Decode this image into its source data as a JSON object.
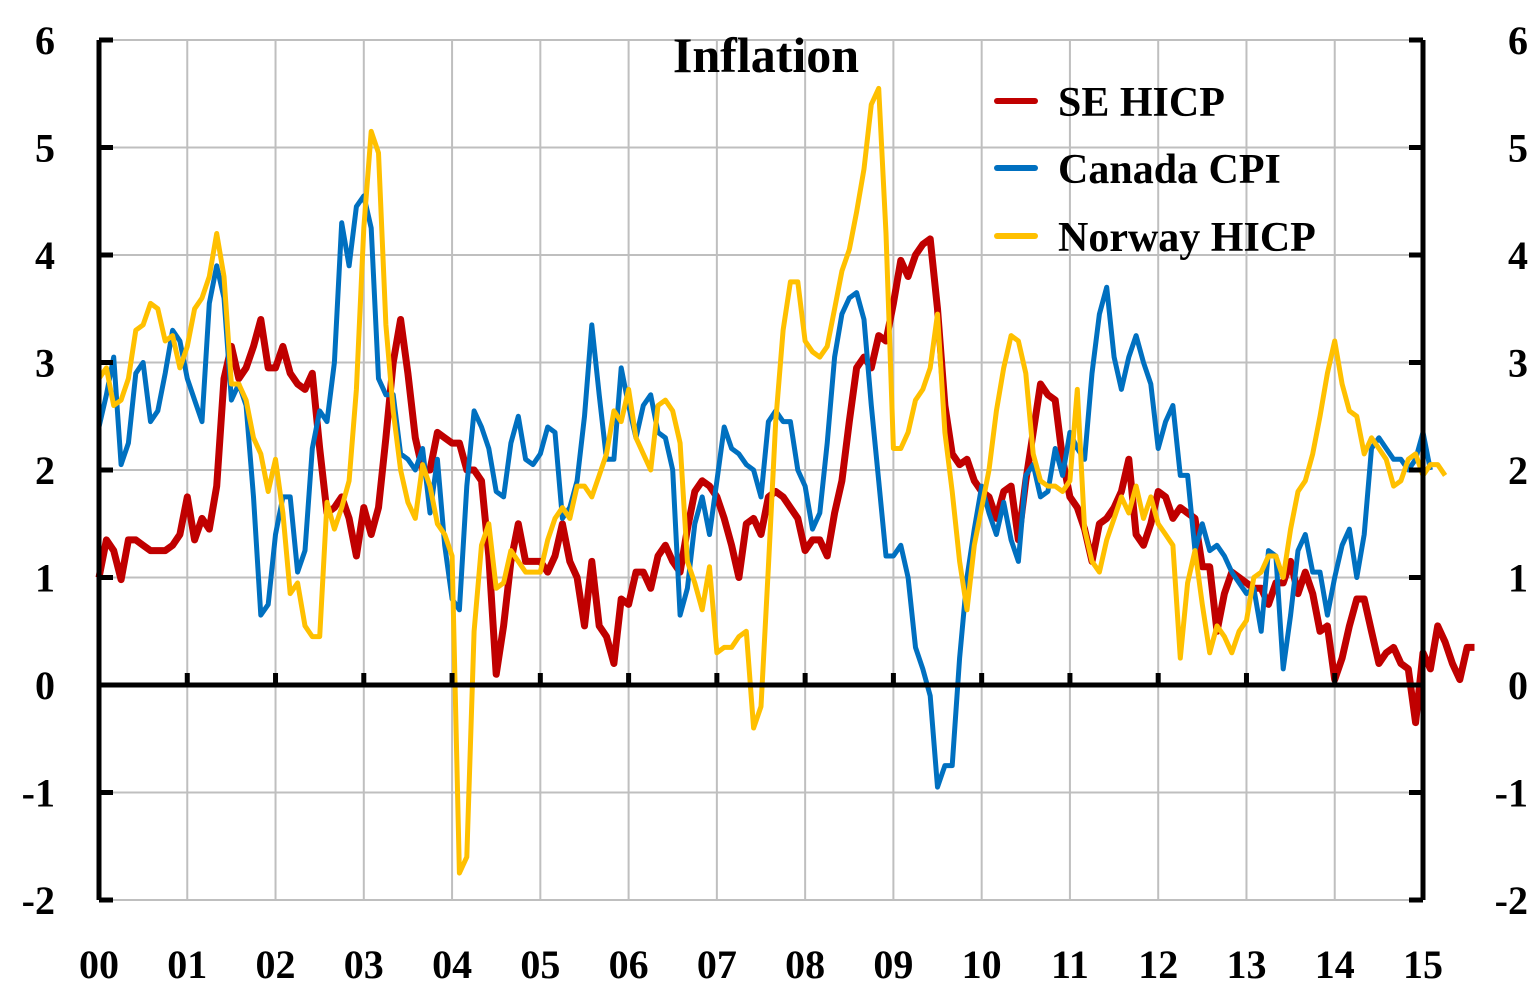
{
  "chart_data": {
    "type": "line",
    "title": "Inflation",
    "xlabel": "",
    "ylabel": "",
    "ylabel_right": "",
    "ylim": [
      -2,
      6
    ],
    "yticks": [
      -2,
      -1,
      0,
      1,
      2,
      3,
      4,
      5,
      6
    ],
    "ytick_labels": [
      "-2",
      "-1",
      "0",
      "1",
      "2",
      "3",
      "4",
      "5",
      "6"
    ],
    "xlim": [
      2000,
      2015
    ],
    "xticks": [
      2000,
      2001,
      2002,
      2003,
      2004,
      2005,
      2006,
      2007,
      2008,
      2009,
      2010,
      2011,
      2012,
      2013,
      2014,
      2015
    ],
    "xtick_labels": [
      "00",
      "01",
      "02",
      "03",
      "04",
      "05",
      "06",
      "07",
      "08",
      "09",
      "10",
      "11",
      "12",
      "13",
      "14",
      "15"
    ],
    "grid": true,
    "legend_position": "top-right",
    "x_step_months": 1,
    "x_start": 2000.0,
    "series": [
      {
        "name": "SE HICP",
        "color": "#C00000",
        "values": [
          1.0,
          1.35,
          1.25,
          0.98,
          1.35,
          1.35,
          1.3,
          1.25,
          1.25,
          1.25,
          1.3,
          1.4,
          1.75,
          1.35,
          1.55,
          1.45,
          1.85,
          2.85,
          3.15,
          2.85,
          2.95,
          3.15,
          3.4,
          2.95,
          2.95,
          3.15,
          2.9,
          2.8,
          2.75,
          2.9,
          2.2,
          1.6,
          1.65,
          1.75,
          1.55,
          1.2,
          1.65,
          1.4,
          1.65,
          2.3,
          3.0,
          3.4,
          2.9,
          2.3,
          2.0,
          2.0,
          2.35,
          2.3,
          2.25,
          2.25,
          2.0,
          2.0,
          1.9,
          1.2,
          0.1,
          0.55,
          1.15,
          1.5,
          1.15,
          1.15,
          1.15,
          1.05,
          1.2,
          1.5,
          1.15,
          1.0,
          0.55,
          1.15,
          0.55,
          0.45,
          0.2,
          0.8,
          0.75,
          1.05,
          1.05,
          0.9,
          1.2,
          1.3,
          1.15,
          1.05,
          1.45,
          1.8,
          1.9,
          1.85,
          1.75,
          1.55,
          1.3,
          1.0,
          1.5,
          1.55,
          1.4,
          1.75,
          1.8,
          1.75,
          1.65,
          1.55,
          1.25,
          1.35,
          1.35,
          1.2,
          1.6,
          1.9,
          2.45,
          2.95,
          3.05,
          2.95,
          3.25,
          3.2,
          3.55,
          3.95,
          3.8,
          4.0,
          4.1,
          4.15,
          3.5,
          2.6,
          2.15,
          2.05,
          2.1,
          1.9,
          1.8,
          1.75,
          1.55,
          1.8,
          1.85,
          1.35,
          1.9,
          2.35,
          2.8,
          2.7,
          2.65,
          2.1,
          1.75,
          1.65,
          1.45,
          1.15,
          1.5,
          1.55,
          1.65,
          1.8,
          2.1,
          1.4,
          1.3,
          1.5,
          1.8,
          1.75,
          1.55,
          1.65,
          1.6,
          1.55,
          1.1,
          1.1,
          0.5,
          0.85,
          1.05,
          1.0,
          0.95,
          0.9,
          0.9,
          0.75,
          0.95,
          0.95,
          1.15,
          0.85,
          1.05,
          0.85,
          0.5,
          0.55,
          0.05,
          0.25,
          0.55,
          0.8,
          0.8,
          0.5,
          0.2,
          0.3,
          0.35,
          0.2,
          0.15,
          -0.35,
          0.3,
          0.15,
          0.55,
          0.4,
          0.2,
          0.05,
          0.35,
          0.35
        ]
      },
      {
        "name": "Canada CPI",
        "color": "#0070C0",
        "values": [
          2.4,
          2.7,
          3.05,
          2.05,
          2.25,
          2.9,
          3.0,
          2.45,
          2.55,
          2.9,
          3.3,
          3.2,
          2.85,
          2.65,
          2.45,
          3.55,
          3.9,
          3.6,
          2.65,
          2.8,
          2.6,
          1.75,
          0.65,
          0.75,
          1.4,
          1.75,
          1.75,
          1.05,
          1.25,
          2.2,
          2.55,
          2.45,
          3.0,
          4.3,
          3.9,
          4.45,
          4.55,
          4.25,
          2.85,
          2.7,
          2.7,
          2.15,
          2.1,
          2.0,
          2.2,
          1.6,
          2.1,
          1.3,
          0.8,
          0.7,
          1.85,
          2.55,
          2.4,
          2.2,
          1.8,
          1.75,
          2.25,
          2.5,
          2.1,
          2.05,
          2.15,
          2.4,
          2.35,
          1.55,
          1.65,
          1.9,
          2.5,
          3.35,
          2.7,
          2.1,
          2.1,
          2.95,
          2.6,
          2.3,
          2.6,
          2.7,
          2.35,
          2.3,
          2.0,
          0.65,
          0.9,
          1.5,
          1.75,
          1.4,
          1.9,
          2.4,
          2.2,
          2.15,
          2.05,
          2.0,
          1.75,
          2.45,
          2.55,
          2.45,
          2.45,
          2.0,
          1.85,
          1.45,
          1.6,
          2.25,
          3.05,
          3.45,
          3.6,
          3.65,
          3.4,
          2.6,
          1.9,
          1.2,
          1.2,
          1.3,
          1.0,
          0.35,
          0.15,
          -0.1,
          -0.95,
          -0.75,
          -0.75,
          0.25,
          1.0,
          1.45,
          1.85,
          1.6,
          1.4,
          1.7,
          1.35,
          1.15,
          1.95,
          2.05,
          1.75,
          1.8,
          2.2,
          1.95,
          2.35,
          2.2,
          2.1,
          2.9,
          3.45,
          3.7,
          3.05,
          2.75,
          3.05,
          3.25,
          3.0,
          2.8,
          2.2,
          2.45,
          2.6,
          1.95,
          1.95,
          1.25,
          1.5,
          1.25,
          1.3,
          1.2,
          1.05,
          0.95,
          0.85,
          0.9,
          0.5,
          1.25,
          1.2,
          0.15,
          0.65,
          1.25,
          1.4,
          1.05,
          1.05,
          0.65,
          1.0,
          1.3,
          1.45,
          1.0,
          1.4,
          2.2,
          2.3,
          2.2,
          2.1,
          2.1,
          2.0,
          2.1,
          2.35,
          2.0
        ]
      },
      {
        "name": "Norway HICP",
        "color": "#FFC000",
        "values": [
          2.85,
          2.95,
          2.6,
          2.65,
          2.85,
          3.3,
          3.35,
          3.55,
          3.5,
          3.2,
          3.25,
          2.95,
          3.15,
          3.5,
          3.6,
          3.8,
          4.2,
          3.8,
          2.8,
          2.8,
          2.65,
          2.3,
          2.15,
          1.8,
          2.1,
          1.6,
          0.85,
          0.95,
          0.55,
          0.45,
          0.45,
          1.7,
          1.45,
          1.65,
          1.9,
          2.75,
          4.25,
          5.15,
          4.95,
          3.35,
          2.55,
          2.0,
          1.7,
          1.55,
          2.05,
          1.85,
          1.5,
          1.4,
          1.2,
          -1.75,
          -1.6,
          0.5,
          1.3,
          1.5,
          0.9,
          0.95,
          1.25,
          1.15,
          1.05,
          1.05,
          1.05,
          1.35,
          1.55,
          1.65,
          1.55,
          1.85,
          1.85,
          1.75,
          1.95,
          2.15,
          2.55,
          2.45,
          2.75,
          2.3,
          2.15,
          2.0,
          2.6,
          2.65,
          2.55,
          2.25,
          1.15,
          0.95,
          0.7,
          1.1,
          0.3,
          0.35,
          0.35,
          0.45,
          0.5,
          -0.4,
          -0.2,
          1.1,
          2.45,
          3.3,
          3.75,
          3.75,
          3.2,
          3.1,
          3.05,
          3.15,
          3.5,
          3.85,
          4.05,
          4.4,
          4.8,
          5.4,
          5.55,
          4.2,
          2.2,
          2.2,
          2.35,
          2.65,
          2.75,
          2.95,
          3.45,
          2.35,
          1.8,
          1.15,
          0.7,
          1.3,
          1.65,
          2.0,
          2.55,
          2.95,
          3.25,
          3.2,
          2.9,
          2.15,
          1.9,
          1.85,
          1.85,
          1.8,
          1.9,
          2.75,
          1.45,
          1.15,
          1.05,
          1.35,
          1.55,
          1.75,
          1.6,
          1.85,
          1.55,
          1.75,
          1.5,
          1.4,
          1.3,
          0.25,
          0.95,
          1.25,
          0.75,
          0.3,
          0.55,
          0.45,
          0.3,
          0.5,
          0.6,
          1.0,
          1.05,
          1.2,
          1.2,
          1.0,
          1.45,
          1.8,
          1.9,
          2.15,
          2.5,
          2.9,
          3.2,
          2.8,
          2.55,
          2.5,
          2.15,
          2.3,
          2.2,
          2.1,
          1.85,
          1.9,
          2.1,
          2.15,
          1.95,
          2.05,
          2.05,
          1.95
        ]
      }
    ]
  }
}
